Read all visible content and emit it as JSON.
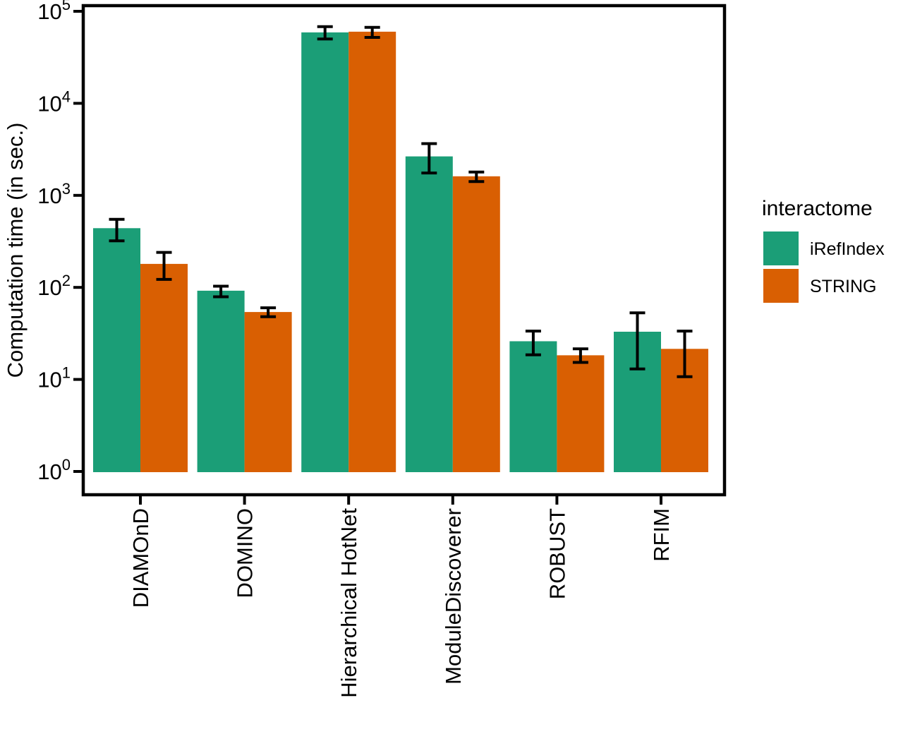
{
  "chart_data": {
    "type": "bar",
    "title": "",
    "xlabel": "",
    "ylabel": "Computation time (in sec.)",
    "y_scale": "log10",
    "ylim": [
      1,
      100000
    ],
    "y_tick_base": "10",
    "y_tick_exponents": [
      0,
      1,
      2,
      3,
      4,
      5
    ],
    "grid": false,
    "background": "#ffffff",
    "axis_color": "#000000",
    "categories": [
      "DIAMOnD",
      "DOMINO",
      "Hierarchical HotNet",
      "ModuleDiscoverer",
      "ROBUST",
      "RFIM"
    ],
    "series": [
      {
        "name": "iRefIndex",
        "color": "#1B9E77",
        "values": [
          440,
          92,
          59000,
          2650,
          26,
          33
        ],
        "error_low": [
          320,
          79,
          50000,
          1750,
          18.5,
          13
        ],
        "error_high": [
          550,
          103,
          68000,
          3650,
          33.5,
          53
        ]
      },
      {
        "name": "STRING",
        "color": "#D95F02",
        "values": [
          180,
          54,
          60000,
          1610,
          18.3,
          21.5
        ],
        "error_low": [
          122,
          48,
          52000,
          1410,
          15.3,
          10.7
        ],
        "error_high": [
          240,
          60,
          67000,
          1790,
          21.5,
          33.5
        ]
      }
    ],
    "legend": {
      "title": "interactome",
      "position": "right",
      "entries": [
        "iRefIndex",
        "STRING"
      ]
    }
  }
}
